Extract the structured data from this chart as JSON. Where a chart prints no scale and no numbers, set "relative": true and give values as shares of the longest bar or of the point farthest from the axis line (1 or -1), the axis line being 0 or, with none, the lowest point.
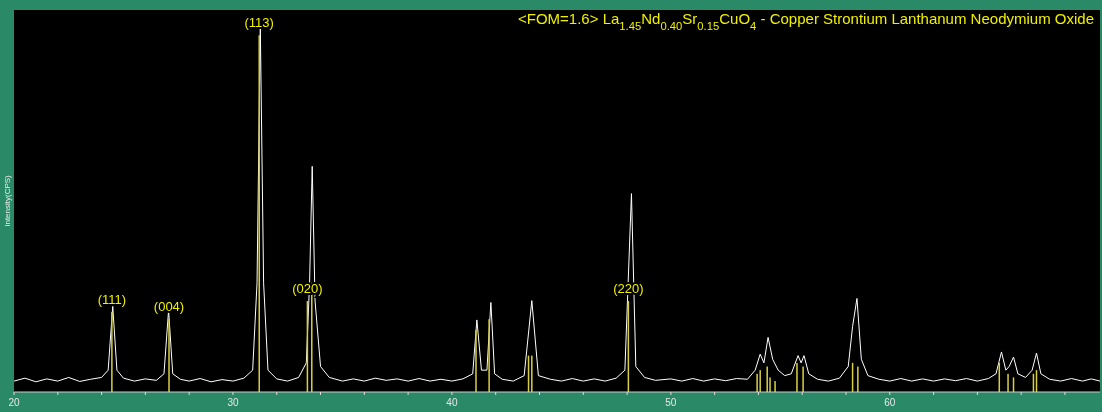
{
  "chart_data": {
    "type": "line",
    "title": "<FOM=1.6> La$_{1.45}$Nd$_{0.40}$Sr$_{0.15}$CuO$_{4}$ - Copper Strontium Lanthanum Neodymium Oxide",
    "ylabel": "Intensity(CPS)",
    "relative": true,
    "tick_labels": "x",
    "grid": false,
    "xlim": [
      20,
      69.6
    ],
    "xticks": [
      20,
      {
        "value": 22,
        "label": null
      },
      {
        "value": 24,
        "label": null
      },
      {
        "value": 26,
        "label": null
      },
      {
        "value": 28,
        "label": null
      },
      30,
      {
        "value": 32,
        "label": null
      },
      {
        "value": 34,
        "label": null
      },
      {
        "value": 36,
        "label": null
      },
      {
        "value": 38,
        "label": null
      },
      40,
      {
        "value": 42,
        "label": null
      },
      {
        "value": 44,
        "label": null
      },
      {
        "value": 46,
        "label": null
      },
      {
        "value": 48,
        "label": null
      },
      50,
      {
        "value": 52,
        "label": null
      },
      {
        "value": 54,
        "label": null
      },
      {
        "value": 56,
        "label": null
      },
      {
        "value": 58,
        "label": null
      },
      60,
      {
        "value": 62,
        "label": null
      },
      {
        "value": 64,
        "label": null
      },
      {
        "value": 66,
        "label": null
      },
      {
        "value": 68,
        "label": null
      }
    ],
    "series": [
      {
        "color": "#ffffff",
        "x": [
          20.0,
          20.5,
          21.0,
          21.5,
          22.0,
          22.5,
          23.0,
          23.5,
          24.0,
          24.3,
          24.51,
          24.7,
          25.0,
          25.5,
          26.0,
          26.5,
          26.85,
          27.06,
          27.25,
          27.6,
          28.0,
          28.5,
          29.0,
          29.5,
          30.0,
          30.5,
          30.9,
          31.1,
          31.25,
          31.4,
          31.6,
          32.0,
          32.5,
          33.0,
          33.35,
          33.5,
          33.62,
          33.75,
          34.0,
          34.4,
          35.0,
          35.5,
          36.0,
          36.5,
          37.0,
          37.5,
          38.0,
          38.5,
          39.0,
          39.5,
          40.0,
          40.5,
          40.95,
          41.14,
          41.35,
          41.6,
          41.78,
          41.95,
          42.3,
          42.8,
          43.3,
          43.65,
          43.95,
          44.5,
          45.0,
          45.5,
          46.0,
          46.5,
          47.0,
          47.5,
          47.9,
          48.2,
          48.4,
          48.8,
          49.3,
          50.0,
          50.5,
          51.0,
          51.5,
          52.0,
          52.5,
          53.0,
          53.5,
          53.85,
          54.08,
          54.25,
          54.44,
          54.65,
          54.9,
          55.2,
          55.5,
          55.81,
          55.95,
          56.08,
          56.3,
          56.7,
          57.2,
          57.7,
          58.1,
          58.3,
          58.5,
          58.7,
          59.0,
          59.5,
          60.0,
          60.5,
          61.0,
          61.5,
          62.0,
          62.5,
          63.0,
          63.5,
          64.0,
          64.5,
          64.85,
          65.1,
          65.3,
          65.45,
          65.65,
          65.85,
          66.2,
          66.5,
          66.7,
          66.9,
          67.3,
          67.8,
          68.3,
          68.8,
          69.2,
          69.6
        ],
        "values": [
          0.03,
          0.038,
          0.028,
          0.036,
          0.03,
          0.04,
          0.029,
          0.035,
          0.04,
          0.06,
          0.235,
          0.06,
          0.038,
          0.03,
          0.036,
          0.032,
          0.05,
          0.225,
          0.05,
          0.035,
          0.03,
          0.037,
          0.028,
          0.034,
          0.03,
          0.038,
          0.06,
          0.3,
          1.0,
          0.3,
          0.06,
          0.036,
          0.03,
          0.04,
          0.08,
          0.3,
          0.62,
          0.25,
          0.07,
          0.04,
          0.03,
          0.036,
          0.03,
          0.038,
          0.032,
          0.036,
          0.03,
          0.037,
          0.03,
          0.035,
          0.03,
          0.036,
          0.05,
          0.198,
          0.06,
          0.06,
          0.246,
          0.05,
          0.035,
          0.03,
          0.045,
          0.251,
          0.045,
          0.035,
          0.03,
          0.037,
          0.03,
          0.036,
          0.03,
          0.038,
          0.06,
          0.545,
          0.07,
          0.04,
          0.032,
          0.036,
          0.03,
          0.037,
          0.03,
          0.036,
          0.031,
          0.037,
          0.035,
          0.06,
          0.104,
          0.08,
          0.15,
          0.09,
          0.06,
          0.045,
          0.05,
          0.1,
          0.08,
          0.1,
          0.05,
          0.035,
          0.03,
          0.038,
          0.07,
          0.18,
          0.257,
          0.09,
          0.045,
          0.035,
          0.03,
          0.037,
          0.03,
          0.036,
          0.03,
          0.036,
          0.031,
          0.037,
          0.03,
          0.037,
          0.05,
          0.11,
          0.06,
          0.07,
          0.096,
          0.05,
          0.04,
          0.06,
          0.107,
          0.05,
          0.035,
          0.03,
          0.037,
          0.03,
          0.036,
          0.03
        ]
      },
      {
        "type": "bar",
        "color": "#d8d040",
        "x": [
          24.47,
          27.08,
          31.2,
          33.4,
          33.6,
          41.1,
          41.7,
          43.5,
          43.65,
          48.06,
          53.94,
          54.08,
          54.4,
          54.53,
          54.76,
          55.76,
          56.04,
          58.3,
          58.54,
          65.0,
          65.4,
          65.65,
          66.56,
          66.7
        ],
        "values": [
          0.22,
          0.2,
          0.98,
          0.25,
          0.3,
          0.17,
          0.2,
          0.1,
          0.1,
          0.25,
          0.05,
          0.06,
          0.07,
          0.04,
          0.03,
          0.08,
          0.07,
          0.08,
          0.07,
          0.08,
          0.05,
          0.04,
          0.05,
          0.06
        ]
      }
    ],
    "annotations": [
      {
        "text": "(111)",
        "x": 24.47,
        "y": 0.22
      },
      {
        "text": "(004)",
        "x": 27.08,
        "y": 0.2
      },
      {
        "text": "(113)",
        "x": 31.2,
        "y": 0.98
      },
      {
        "text": "(020)",
        "x": 33.4,
        "y": 0.25
      },
      {
        "text": "(220)",
        "x": 48.06,
        "y": 0.25
      }
    ]
  }
}
